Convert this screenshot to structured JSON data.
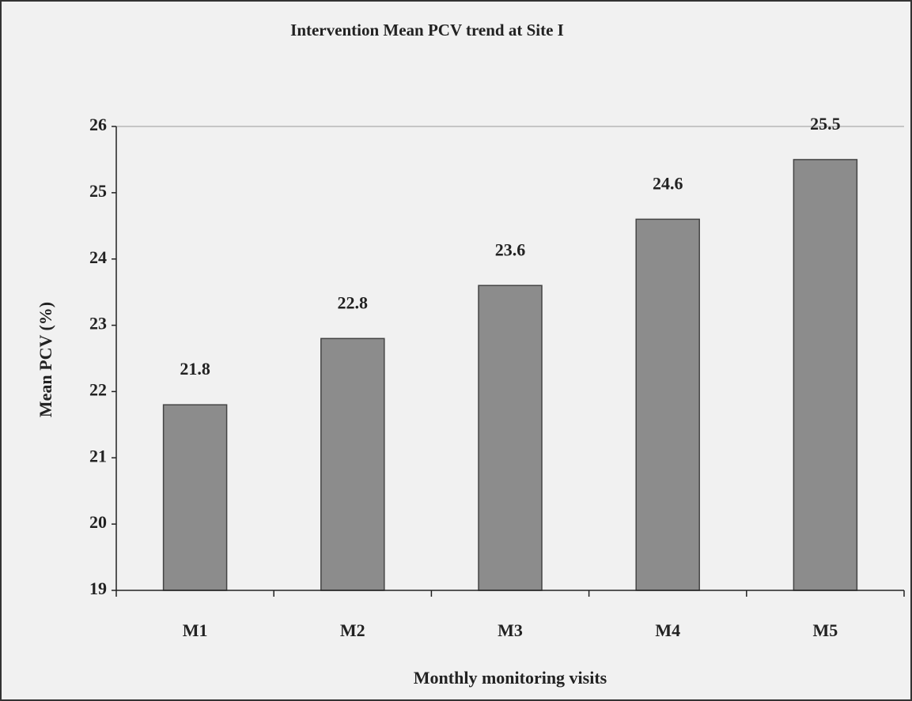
{
  "chart_data": {
    "type": "bar",
    "title": "Intervention Mean PCV trend at Site I",
    "xlabel": "Monthly monitoring visits",
    "ylabel": "Mean  PCV (%)",
    "categories": [
      "M1",
      "M2",
      "M3",
      "M4",
      "M5"
    ],
    "values": [
      21.8,
      22.8,
      23.6,
      24.6,
      25.5
    ],
    "color": "#8c8c8c",
    "ylim": [
      19,
      26
    ],
    "yticks": [
      19,
      20,
      21,
      22,
      23,
      24,
      25,
      26
    ],
    "grid": false
  }
}
